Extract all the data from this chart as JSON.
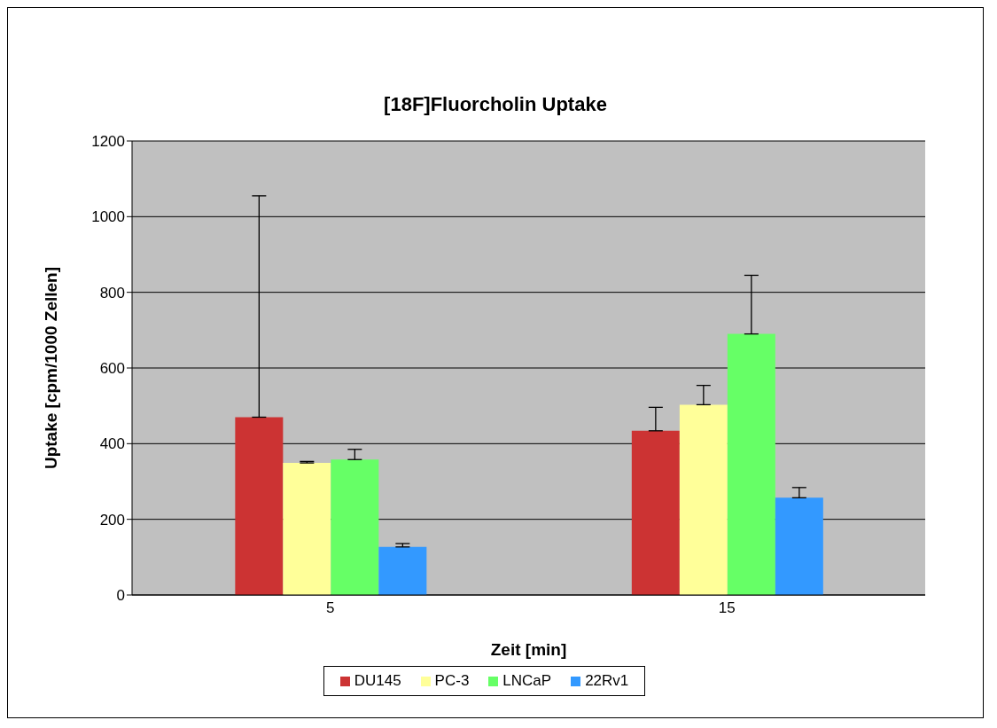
{
  "chart_data": {
    "type": "bar",
    "title": "[18F]Fluorcholin Uptake",
    "xlabel": "Zeit [min]",
    "ylabel": "Uptake [cpm/1000 Zellen]",
    "categories": [
      "5",
      "15"
    ],
    "series": [
      {
        "name": "DU145",
        "color": "#cc3333",
        "values": [
          470,
          434
        ],
        "errors": [
          [
            470,
            1055
          ],
          [
            434,
            496
          ]
        ]
      },
      {
        "name": "PC-3",
        "color": "#ffff99",
        "values": [
          349,
          503
        ],
        "errors": [
          [
            349,
            353
          ],
          [
            503,
            554
          ]
        ]
      },
      {
        "name": "LNCaP",
        "color": "#66ff66",
        "values": [
          358,
          690
        ],
        "errors": [
          [
            358,
            385
          ],
          [
            690,
            845
          ]
        ]
      },
      {
        "name": "22Rv1",
        "color": "#3399ff",
        "values": [
          127,
          257
        ],
        "errors": [
          [
            127,
            136
          ],
          [
            257,
            284
          ]
        ]
      }
    ],
    "ylim": [
      0,
      1200
    ],
    "yticks": [
      0,
      200,
      400,
      600,
      800,
      1000,
      1200
    ],
    "grid": "y",
    "legend": "bottom"
  }
}
